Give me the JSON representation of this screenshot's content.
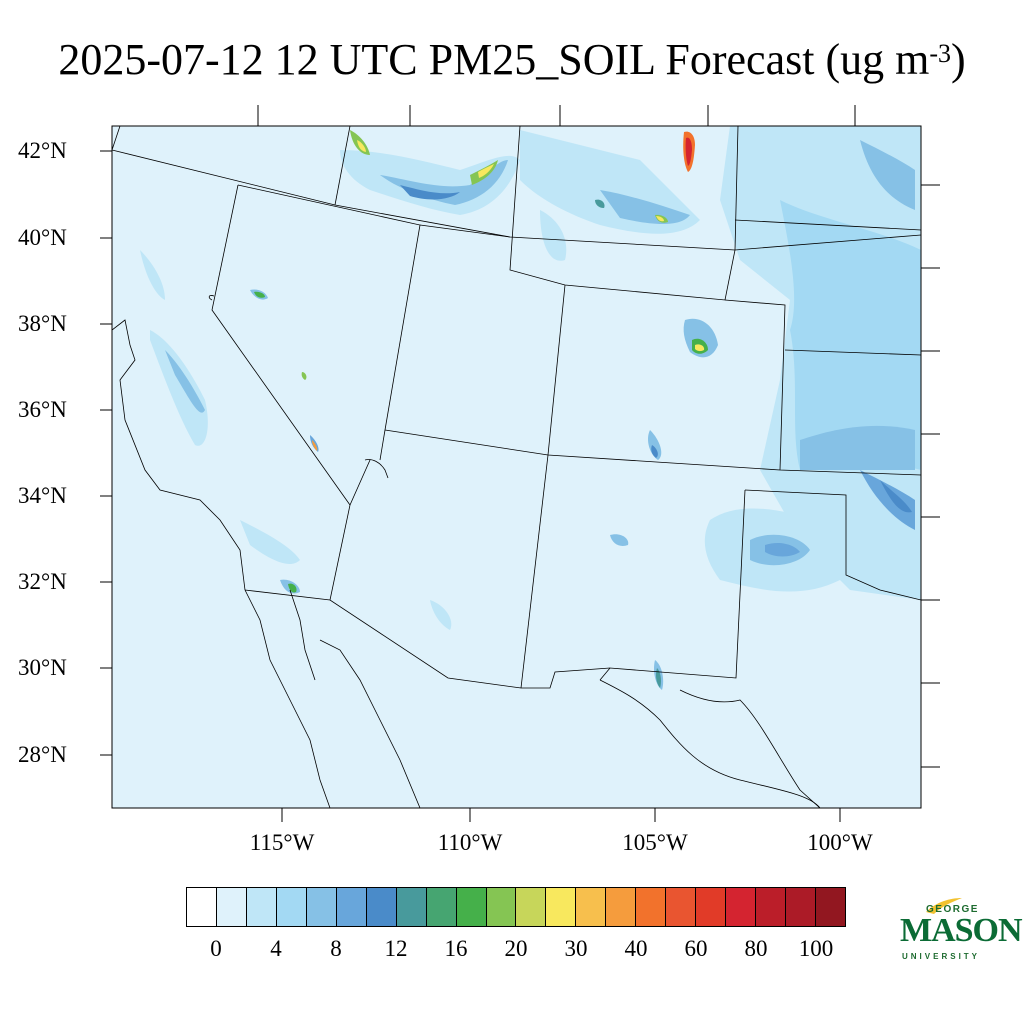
{
  "title": {
    "main": "2025-07-12 12 UTC PM25_SOIL Forecast (ug m",
    "superscript": "-3",
    "closing": ")"
  },
  "map": {
    "background_color": "#dff2fb",
    "boundary_color": "#000000",
    "lat_labels": [
      "42°N",
      "40°N",
      "38°N",
      "36°N",
      "34°N",
      "32°N",
      "30°N",
      "28°N"
    ],
    "lon_labels": [
      "115°W",
      "110°W",
      "105°W",
      "100°W"
    ]
  },
  "colorbar": {
    "colors": [
      "#ffffff",
      "#dff2fb",
      "#bfe6f7",
      "#a3d9f3",
      "#86c1e6",
      "#68a6db",
      "#4a8bc9",
      "#489a9c",
      "#46a571",
      "#45b04a",
      "#85c553",
      "#c7d65a",
      "#f8e85e",
      "#f7bf4d",
      "#f59c3d",
      "#f2722c",
      "#e95530",
      "#e13b28",
      "#d42430",
      "#bb1e29",
      "#ac1b27",
      "#921720"
    ],
    "tick_labels": [
      "0",
      "4",
      "8",
      "12",
      "16",
      "20",
      "30",
      "40",
      "60",
      "80",
      "100"
    ]
  },
  "logo": {
    "line1": "GEORGE",
    "line2": "MASON",
    "line3": "UNIVERSITY",
    "color": "#0b6b35",
    "accent": "#f2c230"
  }
}
